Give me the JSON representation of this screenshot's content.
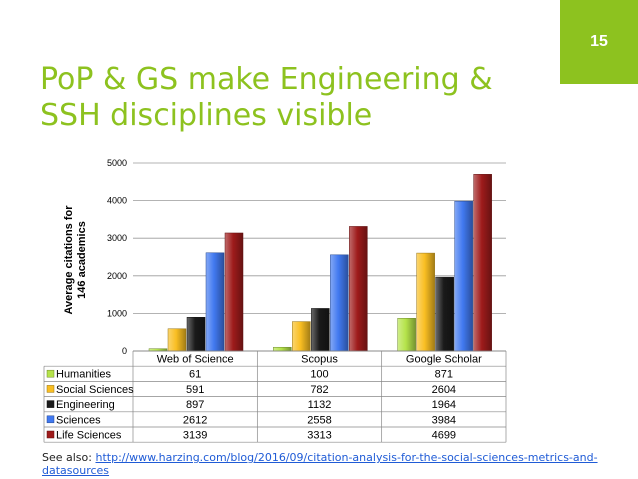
{
  "slide": {
    "number": "15",
    "title_line1": "PoP & GS make Engineering &",
    "title_line2": "SSH disciplines visible",
    "see_also_label": "See also:",
    "see_also_link": "http://www.harzing.com/blog/2016/09/citation-analysis-for-the-social-sciences-metrics-and-datasources"
  },
  "colors": {
    "accent": "#8dc21f",
    "link": "#1f5bd6"
  },
  "chart_data": {
    "type": "bar",
    "title": "",
    "xlabel": "",
    "ylabel_line1": "Average citations for",
    "ylabel_line2": "146 academics",
    "ylim": [
      0,
      5000
    ],
    "yticks": [
      0,
      1000,
      2000,
      3000,
      4000,
      5000
    ],
    "grid": true,
    "categories": [
      "Web of Science",
      "Scopus",
      "Google Scholar"
    ],
    "series": [
      {
        "name": "Humanities",
        "color": "#b5e34a",
        "values": [
          61,
          100,
          871
        ]
      },
      {
        "name": "Social Sciences",
        "color": "#f9be22",
        "values": [
          591,
          782,
          2604
        ]
      },
      {
        "name": "Engineering",
        "color": "#1a1a1a",
        "values": [
          897,
          1132,
          1964
        ]
      },
      {
        "name": "Sciences",
        "color": "#4179f0",
        "values": [
          2612,
          2558,
          3984
        ]
      },
      {
        "name": "Life Sciences",
        "color": "#9e1b1b",
        "values": [
          3139,
          3313,
          4699
        ]
      }
    ],
    "legend": "data-table-below"
  }
}
